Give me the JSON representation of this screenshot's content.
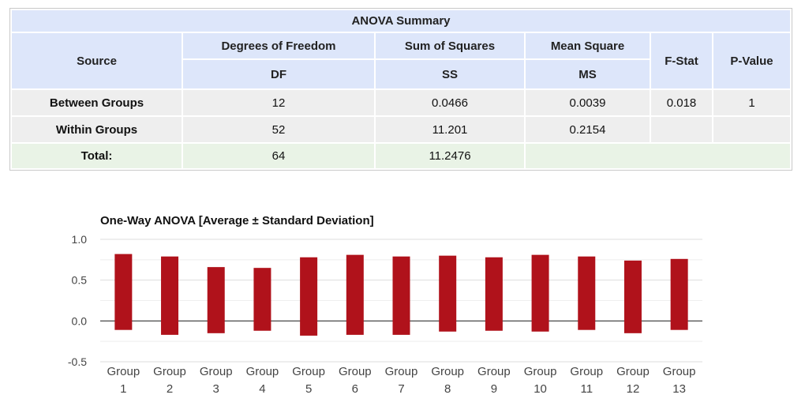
{
  "anova_table": {
    "title": "ANOVA Summary",
    "headers": {
      "source": "Source",
      "degrees_of_freedom": "Degrees of Freedom",
      "df": "DF",
      "sum_of_squares": "Sum of Squares",
      "ss": "SS",
      "mean_square": "Mean Square",
      "ms": "MS",
      "f_stat": "F-Stat",
      "p_value": "P-Value"
    },
    "rows": [
      {
        "source": "Between Groups",
        "df": "12",
        "ss": "0.0466",
        "ms": "0.0039",
        "f": "0.018",
        "p": "1"
      },
      {
        "source": "Within Groups",
        "df": "52",
        "ss": "11.201",
        "ms": "0.2154",
        "f": "",
        "p": ""
      }
    ],
    "total": {
      "label": "Total:",
      "df": "64",
      "ss": "11.2476"
    }
  },
  "chart_data": {
    "type": "bar",
    "title": "One-Way ANOVA [Average ± Standard Deviation]",
    "categories": [
      "Group 1",
      "Group 2",
      "Group 3",
      "Group 4",
      "Group 5",
      "Group 6",
      "Group 7",
      "Group 8",
      "Group 9",
      "Group 10",
      "Group 11",
      "Group 12",
      "Group 13"
    ],
    "category_lines": [
      [
        "Group",
        "1"
      ],
      [
        "Group",
        "2"
      ],
      [
        "Group",
        "3"
      ],
      [
        "Group",
        "4"
      ],
      [
        "Group",
        "5"
      ],
      [
        "Group",
        "6"
      ],
      [
        "Group",
        "7"
      ],
      [
        "Group",
        "8"
      ],
      [
        "Group",
        "9"
      ],
      [
        "Group",
        "10"
      ],
      [
        "Group",
        "11"
      ],
      [
        "Group",
        "12"
      ],
      [
        "Group",
        "13"
      ]
    ],
    "lows": [
      -0.11,
      -0.17,
      -0.15,
      -0.12,
      -0.18,
      -0.17,
      -0.17,
      -0.13,
      -0.12,
      -0.13,
      -0.11,
      -0.15,
      -0.11
    ],
    "highs": [
      0.82,
      0.79,
      0.66,
      0.65,
      0.78,
      0.81,
      0.79,
      0.8,
      0.78,
      0.81,
      0.79,
      0.74,
      0.76
    ],
    "ylim": [
      -0.5,
      1.0
    ],
    "yticks": [
      1.0,
      0.5,
      0.0,
      -0.5
    ],
    "ytick_labels": [
      "1.0",
      "0.5",
      "0.0",
      "-0.5"
    ],
    "bar_color": "#b0121b",
    "grid": true,
    "xlabel": "",
    "ylabel": ""
  }
}
